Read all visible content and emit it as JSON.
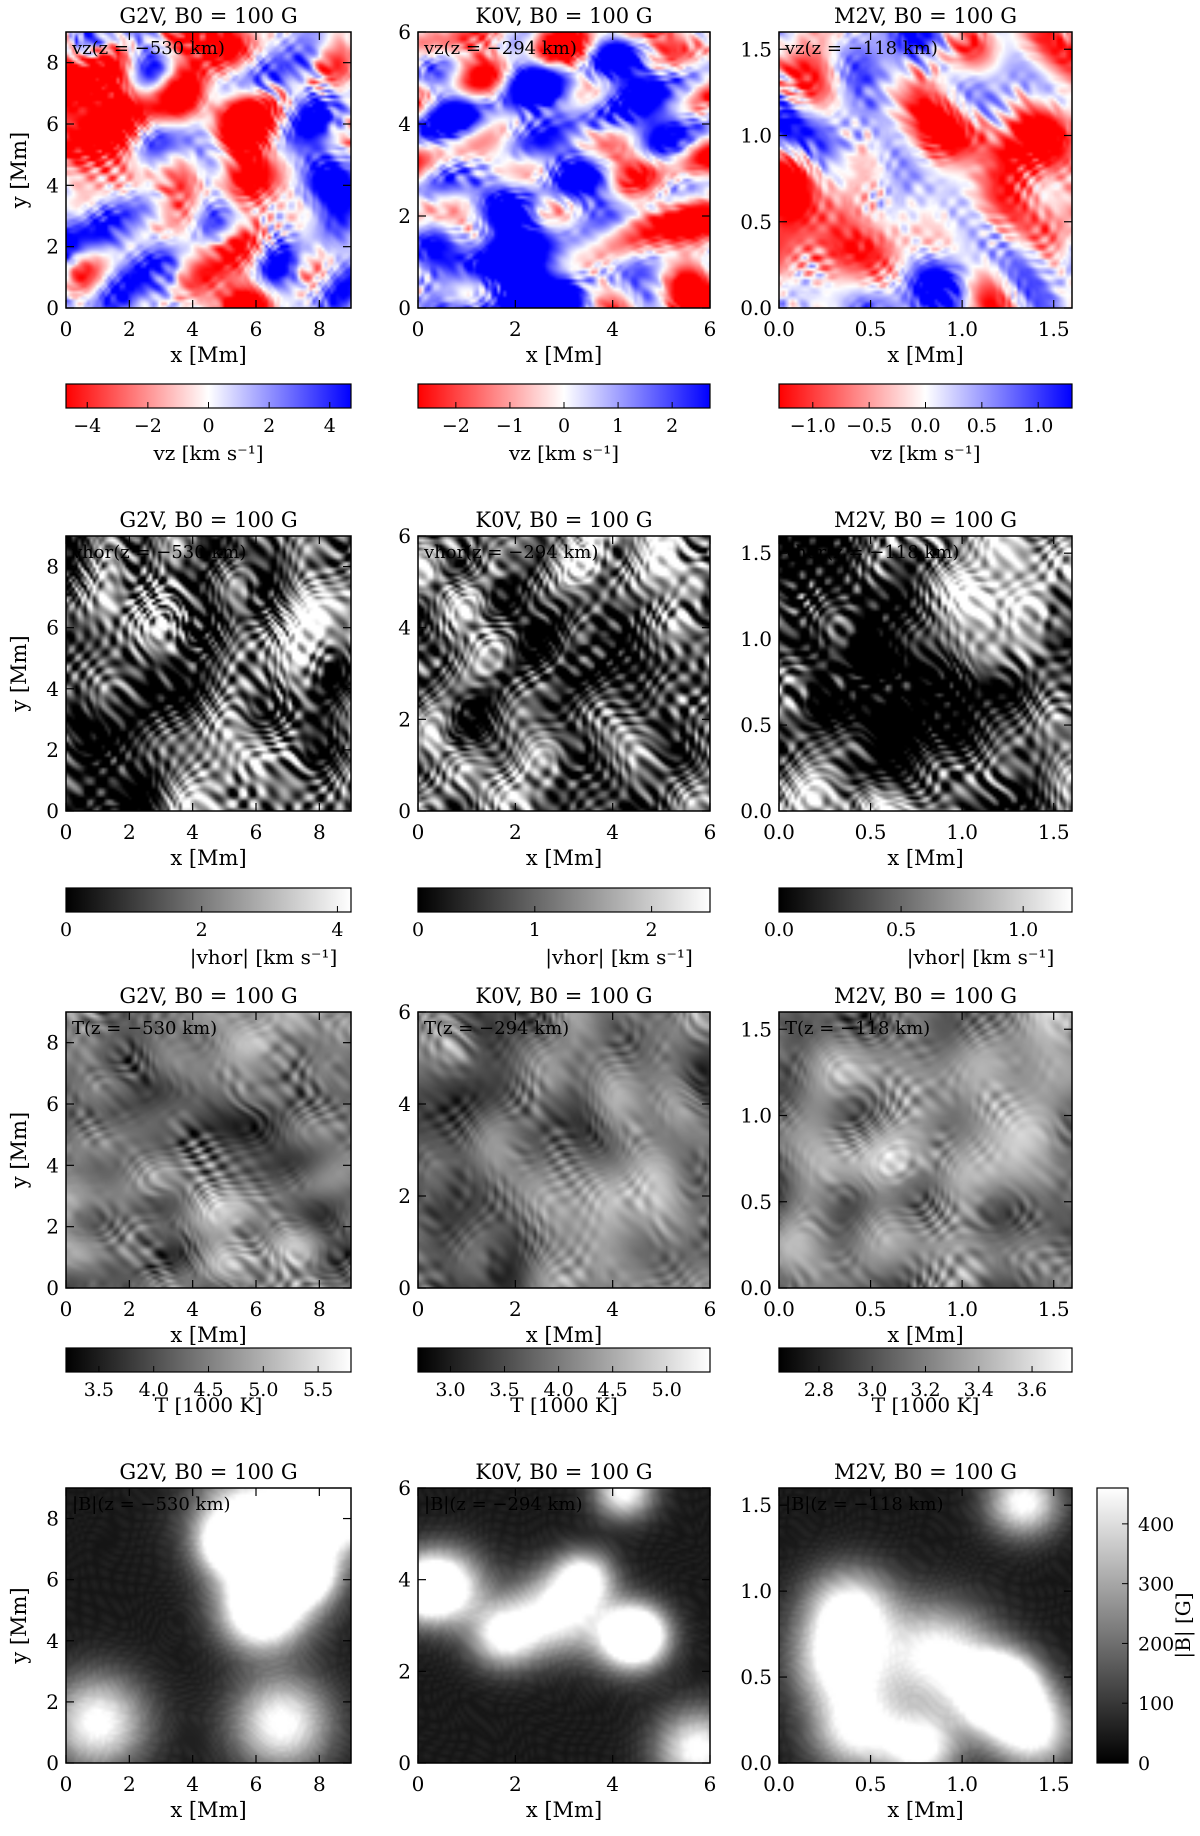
{
  "figure": {
    "columns": [
      {
        "star": "G2V",
        "title": "G2V, B0 = 100 G",
        "depth": "z = −530 km",
        "xticks": [
          "0",
          "2",
          "4",
          "6",
          "8"
        ],
        "yticks": [
          "0",
          "2",
          "4",
          "6",
          "8"
        ],
        "xlim": [
          0,
          9
        ],
        "ylim": [
          0,
          9
        ]
      },
      {
        "star": "K0V",
        "title": "K0V, B0 = 100 G",
        "depth": "z = −294 km",
        "xticks": [
          "0",
          "2",
          "4",
          "6"
        ],
        "yticks": [
          "0",
          "2",
          "4",
          "6"
        ],
        "xlim": [
          0,
          6
        ],
        "ylim": [
          0,
          6
        ]
      },
      {
        "star": "M2V",
        "title": "M2V, B0 = 100 G",
        "depth": "z = −118 km",
        "xticks": [
          "0.0",
          "0.5",
          "1.0",
          "1.5"
        ],
        "yticks": [
          "0.0",
          "0.5",
          "1.0",
          "1.5"
        ],
        "xlim": [
          0,
          1.6
        ],
        "ylim": [
          0,
          1.6
        ]
      }
    ],
    "xlabel": "x [Mm]",
    "ylabel": "y [Mm]",
    "rows": [
      {
        "quantity": "vz",
        "map_label_prefix": "vz",
        "label_color": "#000000",
        "colormap": "red-white-blue",
        "colorbar_label": "vz [km s⁻¹]",
        "colorbars": [
          {
            "range": [
              -4.7,
              4.7
            ],
            "ticks": [
              "−4",
              "−2",
              "0",
              "2",
              "4"
            ],
            "tick_values": [
              -4,
              -2,
              0,
              2,
              4
            ]
          },
          {
            "range": [
              -2.7,
              2.7
            ],
            "ticks": [
              "−2",
              "−1",
              "0",
              "1",
              "2"
            ],
            "tick_values": [
              -2,
              -1,
              0,
              1,
              2
            ]
          },
          {
            "range": [
              -1.3,
              1.3
            ],
            "ticks": [
              "−1.0",
              "−0.5",
              "0.0",
              "0.5",
              "1.0"
            ],
            "tick_values": [
              -1,
              -0.5,
              0,
              0.5,
              1
            ]
          }
        ]
      },
      {
        "quantity": "vhor",
        "map_label_prefix": "vhor",
        "label_color": "#e00000",
        "colormap": "gray",
        "colorbar_label": "|vhor| [km s⁻¹]",
        "colorbars": [
          {
            "range": [
              0,
              4.2
            ],
            "ticks": [
              "0",
              "2",
              "4"
            ],
            "tick_values": [
              0,
              2,
              4
            ]
          },
          {
            "range": [
              0,
              2.5
            ],
            "ticks": [
              "0",
              "1",
              "2"
            ],
            "tick_values": [
              0,
              1,
              2
            ]
          },
          {
            "range": [
              0,
              1.2
            ],
            "ticks": [
              "0.0",
              "0.5",
              "1.0"
            ],
            "tick_values": [
              0,
              0.5,
              1.0
            ]
          }
        ]
      },
      {
        "quantity": "T",
        "map_label_prefix": "T",
        "label_color": "#e00000",
        "colormap": "gray",
        "colorbar_label": "T [1000 K]",
        "colorbars": [
          {
            "range": [
              3.2,
              5.8
            ],
            "ticks": [
              "3.5",
              "4.0",
              "4.5",
              "5.0",
              "5.5"
            ],
            "tick_values": [
              3.5,
              4.0,
              4.5,
              5.0,
              5.5
            ]
          },
          {
            "range": [
              2.7,
              5.4
            ],
            "ticks": [
              "3.0",
              "3.5",
              "4.0",
              "4.5",
              "5.0"
            ],
            "tick_values": [
              3.0,
              3.5,
              4.0,
              4.5,
              5.0
            ]
          },
          {
            "range": [
              2.65,
              3.75
            ],
            "ticks": [
              "2.8",
              "3.0",
              "3.2",
              "3.4",
              "3.6"
            ],
            "tick_values": [
              2.8,
              3.0,
              3.2,
              3.4,
              3.6
            ]
          }
        ]
      },
      {
        "quantity": "B",
        "map_label_prefix": "|B|",
        "label_color": "#e00000",
        "colormap": "gray",
        "colorbar_label": "|B| [G]",
        "colorbars": [
          {
            "range": [
              0,
              460
            ],
            "ticks": [
              "0",
              "100",
              "200",
              "300",
              "400"
            ],
            "tick_values": [
              0,
              100,
              200,
              300,
              400
            ]
          }
        ]
      }
    ]
  },
  "chart_data": {
    "type": "heatmap",
    "description_rows": [
      "vz",
      "|vhor|",
      "T",
      "|B|"
    ],
    "description_columns": [
      "G2V",
      "K0V",
      "M2V"
    ],
    "B0": "100 G",
    "depths_km": [
      -530,
      -294,
      -118
    ],
    "domain_Mm": [
      9,
      6,
      1.6
    ]
  }
}
